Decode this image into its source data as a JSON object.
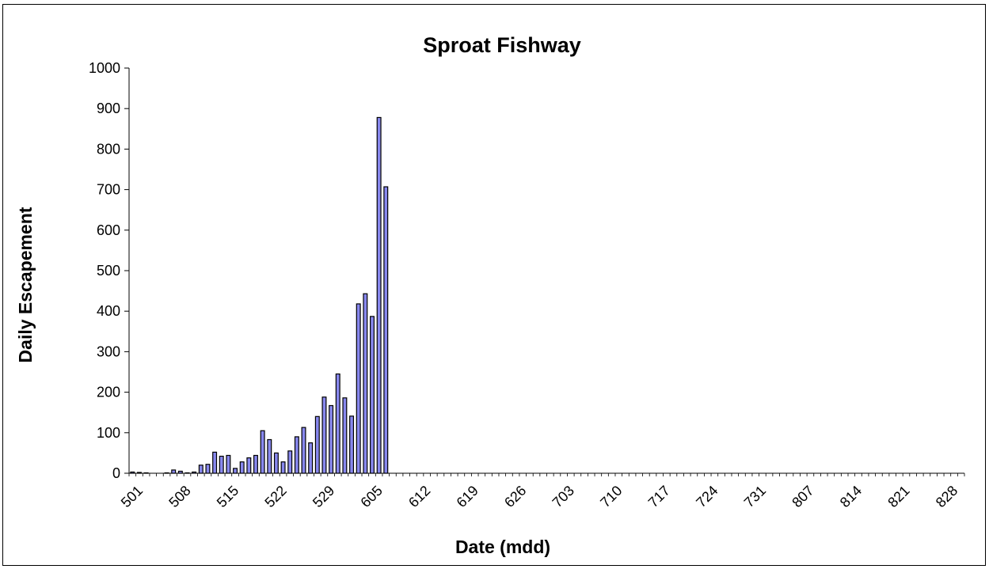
{
  "chart_data": {
    "type": "bar",
    "title": "Sproat Fishway",
    "xlabel": "Date (mdd)",
    "ylabel": "Daily Escapement",
    "ylim": [
      0,
      1000
    ],
    "yticks": [
      0,
      100,
      200,
      300,
      400,
      500,
      600,
      700,
      800,
      900,
      1000
    ],
    "xtick_labels": [
      "501",
      "508",
      "515",
      "522",
      "529",
      "605",
      "612",
      "619",
      "626",
      "703",
      "710",
      "717",
      "724",
      "731",
      "807",
      "814",
      "821",
      "828"
    ],
    "categories": [
      "501",
      "502",
      "503",
      "504",
      "505",
      "506",
      "507",
      "508",
      "509",
      "510",
      "511",
      "512",
      "513",
      "514",
      "515",
      "516",
      "517",
      "518",
      "519",
      "520",
      "521",
      "522",
      "523",
      "524",
      "525",
      "526",
      "527",
      "528",
      "529",
      "530",
      "531",
      "601",
      "602",
      "603",
      "604",
      "605",
      "606",
      "607"
    ],
    "values": [
      3,
      2,
      1,
      0,
      0,
      1,
      8,
      5,
      1,
      3,
      20,
      22,
      52,
      42,
      44,
      12,
      28,
      38,
      44,
      105,
      83,
      50,
      28,
      55,
      90,
      113,
      75,
      140,
      188,
      167,
      245,
      186,
      141,
      418,
      443,
      387,
      878,
      707
    ],
    "bar_color": "#8888ee",
    "grid": false,
    "legend": "none"
  }
}
